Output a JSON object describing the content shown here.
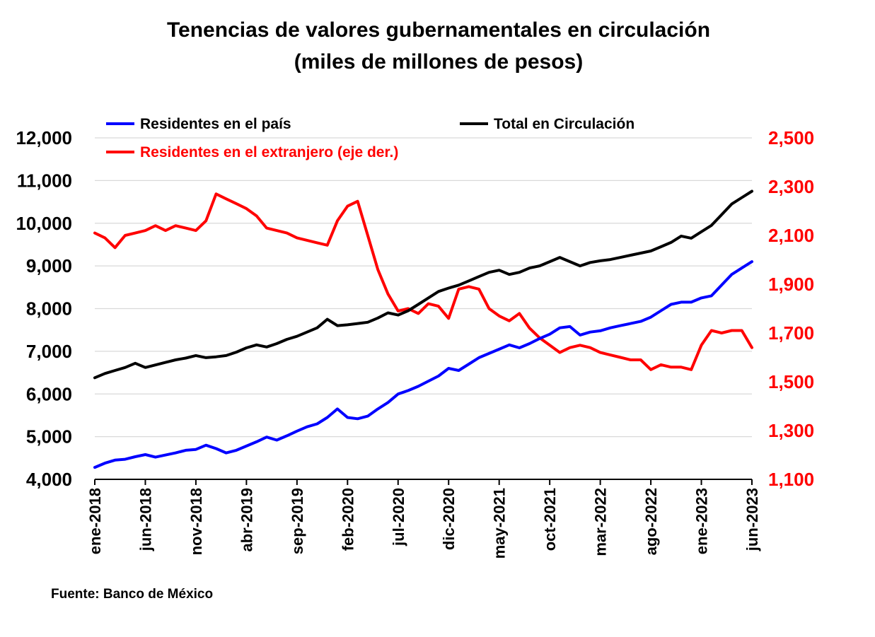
{
  "chart_data": {
    "type": "line",
    "title": "Tenencias de valores gubernamentales en circulación",
    "subtitle": "(miles de millones de pesos)",
    "source": "Fuente: Banco de México",
    "x_ticks": [
      "ene-2018",
      "jun-2018",
      "nov-2018",
      "abr-2019",
      "sep-2019",
      "feb-2020",
      "jul-2020",
      "dic-2020",
      "may-2021",
      "oct-2021",
      "mar-2022",
      "ago-2022",
      "ene-2023",
      "jun-2023"
    ],
    "y_left": {
      "min": 4000,
      "max": 12000,
      "ticks": [
        "4,000",
        "5,000",
        "6,000",
        "7,000",
        "8,000",
        "9,000",
        "10,000",
        "11,000",
        "12,000"
      ]
    },
    "y_right": {
      "min": 1100,
      "max": 2500,
      "ticks": [
        "1,100",
        "1,300",
        "1,500",
        "1,700",
        "1,900",
        "2,100",
        "2,300",
        "2,500"
      ]
    },
    "grid": "horizontal",
    "legend_position": "top",
    "series": [
      {
        "name": "Residentes en el país",
        "axis": "left",
        "color": "#0000ff",
        "x": [
          "2018-01",
          "2018-02",
          "2018-03",
          "2018-04",
          "2018-05",
          "2018-06",
          "2018-07",
          "2018-08",
          "2018-09",
          "2018-10",
          "2018-11",
          "2018-12",
          "2019-01",
          "2019-02",
          "2019-03",
          "2019-04",
          "2019-05",
          "2019-06",
          "2019-07",
          "2019-08",
          "2019-09",
          "2019-10",
          "2019-11",
          "2019-12",
          "2020-01",
          "2020-02",
          "2020-03",
          "2020-04",
          "2020-05",
          "2020-06",
          "2020-07",
          "2020-08",
          "2020-09",
          "2020-10",
          "2020-11",
          "2020-12",
          "2021-01",
          "2021-02",
          "2021-03",
          "2021-04",
          "2021-05",
          "2021-06",
          "2021-07",
          "2021-08",
          "2021-09",
          "2021-10",
          "2021-11",
          "2021-12",
          "2022-01",
          "2022-02",
          "2022-03",
          "2022-04",
          "2022-05",
          "2022-06",
          "2022-07",
          "2022-08",
          "2022-09",
          "2022-10",
          "2022-11",
          "2022-12",
          "2023-01",
          "2023-02",
          "2023-03",
          "2023-04",
          "2023-05",
          "2023-06"
        ],
        "values": [
          4280,
          4380,
          4450,
          4470,
          4530,
          4580,
          4520,
          4570,
          4620,
          4680,
          4700,
          4800,
          4720,
          4620,
          4680,
          4780,
          4880,
          4990,
          4920,
          5020,
          5130,
          5230,
          5300,
          5450,
          5650,
          5450,
          5420,
          5480,
          5650,
          5800,
          6000,
          6080,
          6180,
          6300,
          6420,
          6600,
          6550,
          6700,
          6850,
          6950,
          7050,
          7150,
          7080,
          7180,
          7300,
          7400,
          7550,
          7580,
          7380,
          7450,
          7480,
          7550,
          7600,
          7650,
          7700,
          7800,
          7950,
          8100,
          8150,
          8150,
          8250,
          8300,
          8550,
          8800,
          8950,
          9100
        ]
      },
      {
        "name": "Total en Circulación",
        "axis": "left",
        "color": "#000000",
        "x": [
          "2018-01",
          "2018-02",
          "2018-03",
          "2018-04",
          "2018-05",
          "2018-06",
          "2018-07",
          "2018-08",
          "2018-09",
          "2018-10",
          "2018-11",
          "2018-12",
          "2019-01",
          "2019-02",
          "2019-03",
          "2019-04",
          "2019-05",
          "2019-06",
          "2019-07",
          "2019-08",
          "2019-09",
          "2019-10",
          "2019-11",
          "2019-12",
          "2020-01",
          "2020-02",
          "2020-03",
          "2020-04",
          "2020-05",
          "2020-06",
          "2020-07",
          "2020-08",
          "2020-09",
          "2020-10",
          "2020-11",
          "2020-12",
          "2021-01",
          "2021-02",
          "2021-03",
          "2021-04",
          "2021-05",
          "2021-06",
          "2021-07",
          "2021-08",
          "2021-09",
          "2021-10",
          "2021-11",
          "2021-12",
          "2022-01",
          "2022-02",
          "2022-03",
          "2022-04",
          "2022-05",
          "2022-06",
          "2022-07",
          "2022-08",
          "2022-09",
          "2022-10",
          "2022-11",
          "2022-12",
          "2023-01",
          "2023-02",
          "2023-03",
          "2023-04",
          "2023-05",
          "2023-06"
        ],
        "values": [
          6380,
          6480,
          6550,
          6620,
          6720,
          6620,
          6680,
          6740,
          6800,
          6840,
          6900,
          6850,
          6870,
          6900,
          6980,
          7080,
          7150,
          7100,
          7180,
          7280,
          7350,
          7450,
          7550,
          7750,
          7600,
          7620,
          7650,
          7680,
          7780,
          7900,
          7850,
          7950,
          8100,
          8250,
          8400,
          8480,
          8550,
          8650,
          8750,
          8850,
          8900,
          8800,
          8850,
          8950,
          9000,
          9100,
          9200,
          9100,
          9000,
          9080,
          9120,
          9150,
          9200,
          9250,
          9300,
          9350,
          9450,
          9550,
          9700,
          9650,
          9800,
          9950,
          10200,
          10450,
          10600,
          10750
        ]
      },
      {
        "name": "Residentes en el extranjero (eje der.)",
        "axis": "right",
        "color": "#ff0000",
        "x": [
          "2018-01",
          "2018-02",
          "2018-03",
          "2018-04",
          "2018-05",
          "2018-06",
          "2018-07",
          "2018-08",
          "2018-09",
          "2018-10",
          "2018-11",
          "2018-12",
          "2019-01",
          "2019-02",
          "2019-03",
          "2019-04",
          "2019-05",
          "2019-06",
          "2019-07",
          "2019-08",
          "2019-09",
          "2019-10",
          "2019-11",
          "2019-12",
          "2020-01",
          "2020-02",
          "2020-03",
          "2020-04",
          "2020-05",
          "2020-06",
          "2020-07",
          "2020-08",
          "2020-09",
          "2020-10",
          "2020-11",
          "2020-12",
          "2021-01",
          "2021-02",
          "2021-03",
          "2021-04",
          "2021-05",
          "2021-06",
          "2021-07",
          "2021-08",
          "2021-09",
          "2021-10",
          "2021-11",
          "2021-12",
          "2022-01",
          "2022-02",
          "2022-03",
          "2022-04",
          "2022-05",
          "2022-06",
          "2022-07",
          "2022-08",
          "2022-09",
          "2022-10",
          "2022-11",
          "2022-12",
          "2023-01",
          "2023-02",
          "2023-03",
          "2023-04",
          "2023-05",
          "2023-06"
        ],
        "values": [
          2110,
          2090,
          2050,
          2100,
          2110,
          2120,
          2140,
          2120,
          2140,
          2130,
          2120,
          2160,
          2270,
          2250,
          2230,
          2210,
          2180,
          2130,
          2120,
          2110,
          2090,
          2080,
          2070,
          2060,
          2160,
          2220,
          2240,
          2100,
          1960,
          1860,
          1790,
          1800,
          1780,
          1820,
          1810,
          1760,
          1880,
          1890,
          1880,
          1800,
          1770,
          1750,
          1780,
          1720,
          1680,
          1650,
          1620,
          1640,
          1650,
          1640,
          1620,
          1610,
          1600,
          1590,
          1590,
          1550,
          1570,
          1560,
          1560,
          1550,
          1650,
          1710,
          1700,
          1710,
          1710,
          1640
        ]
      }
    ]
  }
}
